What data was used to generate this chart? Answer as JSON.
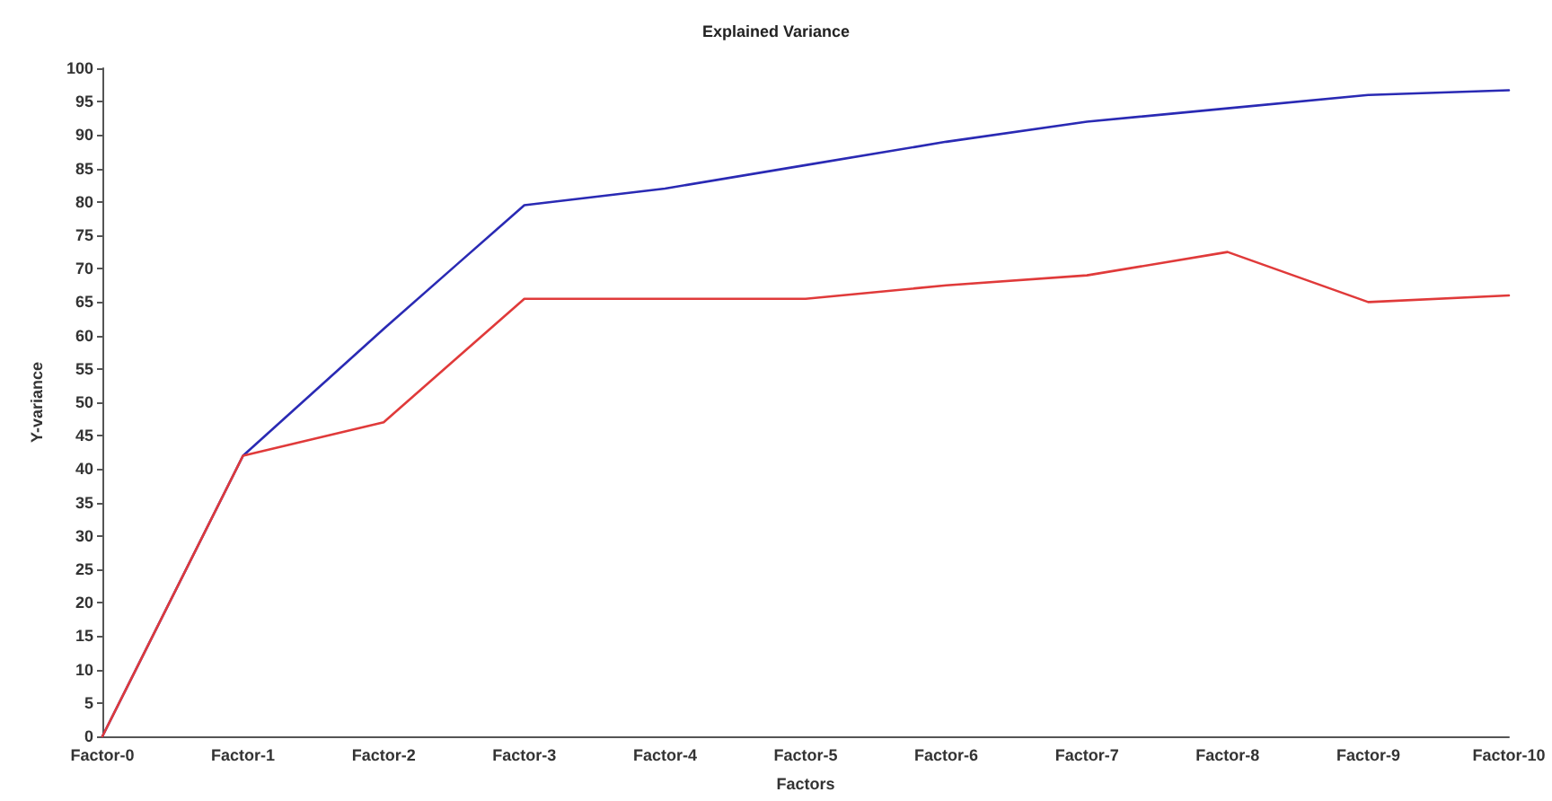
{
  "chart_data": {
    "type": "line",
    "title": "Explained Variance",
    "xlabel": "Factors",
    "ylabel": "Y-variance",
    "categories": [
      "Factor-0",
      "Factor-1",
      "Factor-2",
      "Factor-3",
      "Factor-4",
      "Factor-5",
      "Factor-6",
      "Factor-7",
      "Factor-8",
      "Factor-9",
      "Factor-10"
    ],
    "series": [
      {
        "color": "#2a2ab4",
        "values": [
          0,
          42,
          61,
          79.5,
          82,
          85.5,
          89,
          92,
          94,
          96,
          96.7
        ]
      },
      {
        "color": "#e03a3a",
        "values": [
          0,
          42,
          47,
          65.5,
          65.5,
          65.5,
          67.5,
          69,
          72.5,
          65,
          66
        ]
      }
    ],
    "ylim": [
      0,
      100
    ],
    "yticks": [
      0,
      5,
      10,
      15,
      20,
      25,
      30,
      35,
      40,
      45,
      50,
      55,
      60,
      65,
      70,
      75,
      80,
      85,
      90,
      95,
      100
    ],
    "grid": false,
    "marker": "none",
    "line_style": "solid"
  }
}
